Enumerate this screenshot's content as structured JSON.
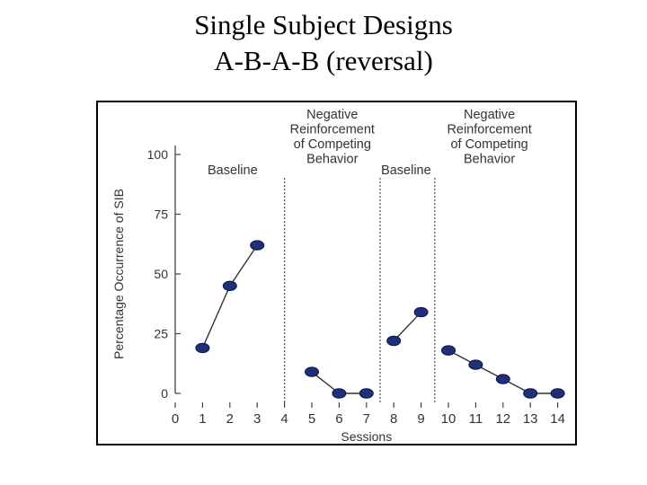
{
  "slide": {
    "title_line1": "Single Subject Designs",
    "title_line2": "A-B-A-B (reversal)"
  },
  "chart_data": {
    "type": "scatter",
    "xlabel": "Sessions",
    "ylabel": "Percentage Occurrence of SIB",
    "xlim": [
      0,
      14
    ],
    "ylim": [
      0,
      100
    ],
    "x_ticks": [
      0,
      1,
      2,
      3,
      4,
      5,
      6,
      7,
      8,
      9,
      10,
      11,
      12,
      13,
      14
    ],
    "y_ticks": [
      0,
      25,
      50,
      75,
      100
    ],
    "grid": false,
    "phase_change_lines": [
      4,
      7.5,
      9.5
    ],
    "phases": [
      {
        "lines": [
          "Baseline"
        ],
        "x": [
          1,
          2,
          3
        ],
        "y": [
          19,
          45,
          62
        ]
      },
      {
        "lines": [
          "Negative",
          "Reinforcement",
          "of Competing",
          "Behavior"
        ],
        "x": [
          5,
          6,
          7
        ],
        "y": [
          9,
          0,
          0
        ]
      },
      {
        "lines": [
          "Baseline"
        ],
        "x": [
          8,
          9
        ],
        "y": [
          22,
          34
        ]
      },
      {
        "lines": [
          "Negative",
          "Reinforcement",
          "of Competing",
          "Behavior"
        ],
        "x": [
          10,
          11,
          12,
          13,
          14
        ],
        "y": [
          18,
          12,
          6,
          0,
          0
        ]
      }
    ],
    "colors": {
      "marker": "#1f2f7a",
      "marker_edge": "#0b1445",
      "line": "#333333",
      "axis": "#444444"
    }
  }
}
